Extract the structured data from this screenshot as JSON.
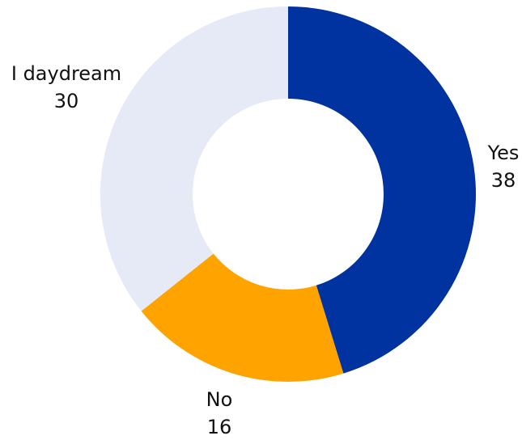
{
  "chart_data": {
    "type": "pie",
    "variant": "donut",
    "title": "",
    "categories": [
      "Yes",
      "No",
      "I daydream"
    ],
    "values": [
      38,
      16,
      30
    ],
    "value_labels": [
      "38",
      "16",
      "30"
    ],
    "colors": [
      "#0033a0",
      "#ffa300",
      "#e6e9f6"
    ],
    "start_angle": "12 o'clock",
    "direction": "clockwise",
    "legend": "none",
    "data_labels": "outside slices"
  }
}
